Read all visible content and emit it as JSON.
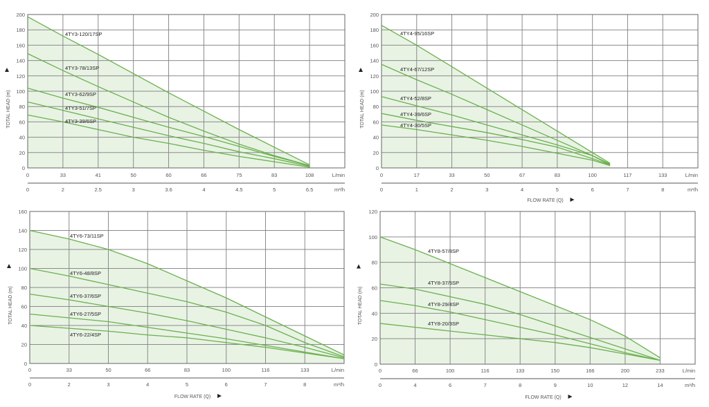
{
  "chart_data": [
    {
      "type": "line",
      "title": "",
      "ylabel": "TOTAL HEAD (m)",
      "xlabel": "",
      "ylim": [
        0,
        200
      ],
      "yticks": [
        0,
        20,
        40,
        60,
        80,
        100,
        120,
        140,
        160,
        180,
        200
      ],
      "x_index_range": [
        0,
        9
      ],
      "x_ticks_lmin": [
        "0",
        "33",
        "41",
        "50",
        "60",
        "66",
        "75",
        "83",
        "108"
      ],
      "x_unit_lmin": "L/min",
      "x_ticks_m3h": [
        "0",
        "2",
        "2.5",
        "3",
        "3.6",
        "4",
        "4.5",
        "5",
        "6.5"
      ],
      "x_unit_m3h": "m³/h",
      "series": [
        {
          "name": "4TY3-120/17SP",
          "x": [
            0,
            1,
            2,
            3,
            4,
            5,
            6,
            7,
            8
          ],
          "y": [
            197,
            172,
            148,
            123,
            98,
            74,
            50,
            27,
            4
          ]
        },
        {
          "name": "4TY3-78/13SP",
          "x": [
            0,
            1,
            2,
            3,
            4,
            5,
            6,
            7,
            8
          ],
          "y": [
            149,
            127,
            106,
            86,
            66,
            48,
            31,
            16,
            3
          ]
        },
        {
          "name": "4TY3-62/9SP",
          "x": [
            0,
            1,
            2,
            3,
            4,
            5,
            6,
            7,
            8
          ],
          "y": [
            104,
            91,
            79,
            66,
            53,
            41,
            28,
            15,
            3
          ]
        },
        {
          "name": "4TY3-51/7SP",
          "x": [
            0,
            1,
            2,
            3,
            4,
            5,
            6,
            7,
            8
          ],
          "y": [
            86,
            75,
            64,
            53,
            42,
            32,
            21,
            12,
            2
          ]
        },
        {
          "name": "4TY3-39/6SP",
          "x": [
            0,
            1,
            2,
            3,
            4,
            5,
            6,
            7,
            8
          ],
          "y": [
            69,
            60,
            50,
            40,
            32,
            23,
            15,
            8,
            1
          ]
        }
      ]
    },
    {
      "type": "line",
      "title": "",
      "ylabel": "TOTAL HEAD (m)",
      "xlabel": "FLOW RATE (Q)",
      "ylim": [
        0,
        200
      ],
      "yticks": [
        0,
        20,
        40,
        60,
        80,
        100,
        120,
        140,
        160,
        180,
        200
      ],
      "x_index_range": [
        0,
        9
      ],
      "x_ticks_lmin": [
        "0",
        "17",
        "33",
        "50",
        "67",
        "83",
        "100",
        "117",
        "133"
      ],
      "x_unit_lmin": "L/min",
      "x_ticks_m3h": [
        "0",
        "1",
        "2",
        "3",
        "4",
        "5",
        "6",
        "7",
        "8"
      ],
      "x_unit_m3h": "m³/h",
      "series": [
        {
          "name": "4TY4-95/16SP",
          "x": [
            0,
            1,
            2,
            3,
            4,
            5,
            6,
            6.5
          ],
          "y": [
            186,
            160,
            132,
            104,
            76,
            48,
            20,
            6
          ]
        },
        {
          "name": "4TY4-67/12SP",
          "x": [
            0,
            1,
            2,
            3,
            4,
            5,
            6,
            6.5
          ],
          "y": [
            135,
            115,
            96,
            76,
            56,
            36,
            16,
            5
          ]
        },
        {
          "name": "4TY4-52/8SP",
          "x": [
            0,
            1,
            2,
            3,
            4,
            5,
            6,
            6.5
          ],
          "y": [
            93,
            81,
            69,
            56,
            43,
            30,
            16,
            4
          ]
        },
        {
          "name": "4TY4-39/6SP",
          "x": [
            0,
            1,
            2,
            3,
            4,
            5,
            6,
            6.5
          ],
          "y": [
            71,
            62,
            54,
            46,
            37,
            27,
            12,
            4
          ]
        },
        {
          "name": "4TY4-30/5SP",
          "x": [
            0,
            1,
            2,
            3,
            4,
            5,
            6,
            6.5
          ],
          "y": [
            56,
            50,
            43,
            36,
            28,
            19,
            10,
            3
          ]
        }
      ]
    },
    {
      "type": "line",
      "title": "",
      "ylabel": "TOTAL HEAD (m)",
      "xlabel": "FLOW RATE (Q)",
      "ylim": [
        0,
        160
      ],
      "yticks": [
        0,
        20,
        40,
        60,
        80,
        100,
        120,
        140,
        160
      ],
      "x_index_range": [
        0,
        8
      ],
      "x_ticks_lmin": [
        "0",
        "33",
        "50",
        "66",
        "83",
        "100",
        "116",
        "133"
      ],
      "x_unit_lmin": "L/min",
      "x_ticks_m3h": [
        "0",
        "2",
        "3",
        "4",
        "5",
        "6",
        "7",
        "8"
      ],
      "x_unit_m3h": "m³/h",
      "series": [
        {
          "name": "4TY6-73/11SP",
          "x": [
            0,
            1,
            2,
            3,
            4,
            5,
            6,
            7,
            8
          ],
          "y": [
            140,
            131,
            120,
            105,
            87,
            69,
            49,
            29,
            9
          ]
        },
        {
          "name": "4TY6-48/8SP",
          "x": [
            0,
            1,
            2,
            3,
            4,
            5,
            6,
            7,
            8
          ],
          "y": [
            100,
            92,
            83,
            74,
            65,
            54,
            40,
            22,
            7
          ]
        },
        {
          "name": "4TY6-37/6SP",
          "x": [
            0,
            1,
            2,
            3,
            4,
            5,
            6,
            7,
            8
          ],
          "y": [
            73,
            67,
            60,
            53,
            45,
            36,
            27,
            17,
            6
          ]
        },
        {
          "name": "4TY6-27/5SP",
          "x": [
            0,
            1,
            2,
            3,
            4,
            5,
            6,
            7,
            8
          ],
          "y": [
            52,
            48,
            44,
            38,
            32,
            26,
            19,
            12,
            5
          ]
        },
        {
          "name": "4TY6-22/4SP",
          "x": [
            0,
            1,
            2,
            3,
            4,
            5,
            6,
            7,
            8
          ],
          "y": [
            40,
            37,
            34,
            30,
            27,
            22,
            17,
            11,
            5
          ]
        }
      ]
    },
    {
      "type": "line",
      "title": "",
      "ylabel": "TOTAL HEAD (m)",
      "xlabel": "FLOW RATE (Q)",
      "ylim": [
        0,
        120
      ],
      "yticks": [
        0,
        20,
        40,
        60,
        80,
        100,
        120
      ],
      "x_index_range": [
        0,
        9
      ],
      "x_ticks_lmin": [
        "0",
        "66",
        "100",
        "116",
        "133",
        "150",
        "166",
        "200",
        "233"
      ],
      "x_unit_lmin": "L/min",
      "x_ticks_m3h": [
        "0",
        "4",
        "6",
        "7",
        "8",
        "9",
        "10",
        "12",
        "14"
      ],
      "x_unit_m3h": "m³/h",
      "series": [
        {
          "name": "4TY8-57/8SP",
          "x": [
            0,
            1,
            2,
            3,
            4,
            5,
            6,
            7,
            8
          ],
          "y": [
            100,
            90,
            79,
            68,
            57,
            46,
            35,
            22,
            5
          ]
        },
        {
          "name": "4TY8-37/5SP",
          "x": [
            0,
            1,
            2,
            3,
            4,
            5,
            6,
            7,
            8
          ],
          "y": [
            63,
            59,
            53,
            47,
            39,
            30,
            21,
            12,
            3
          ]
        },
        {
          "name": "4TY8-29/4SP",
          "x": [
            0,
            1,
            2,
            3,
            4,
            5,
            6,
            7,
            8
          ],
          "y": [
            50,
            46,
            41,
            35,
            29,
            23,
            16,
            9,
            3
          ]
        },
        {
          "name": "4TY8-20/3SP",
          "x": [
            0,
            1,
            2,
            3,
            4,
            5,
            6,
            7,
            8
          ],
          "y": [
            32,
            29,
            26,
            23,
            20,
            17,
            13,
            8,
            3
          ]
        }
      ]
    }
  ],
  "colors": {
    "curve": "#6ab04c",
    "fill": "#e8f3e4",
    "grid": "#8a8a8a",
    "axis": "#555555"
  }
}
